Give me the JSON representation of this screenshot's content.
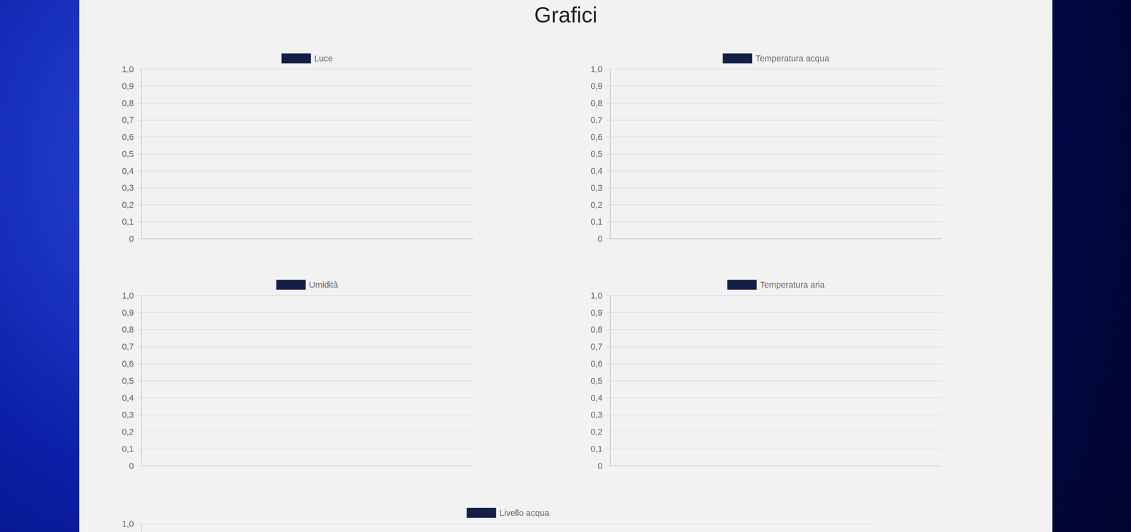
{
  "header": {
    "title": "Grafici"
  },
  "chart_data": [
    {
      "type": "line",
      "categories": [],
      "series": [
        {
          "name": "Luce",
          "color": "#141e46",
          "values": []
        }
      ],
      "ylim": [
        0,
        1
      ],
      "yticks": [
        0,
        {
          "value": 0.1,
          "label": "0,1"
        },
        {
          "value": 0.2,
          "label": "0,2"
        },
        {
          "value": 0.3,
          "label": "0,3"
        },
        {
          "value": 0.4,
          "label": "0,4"
        },
        {
          "value": 0.5,
          "label": "0,5"
        },
        {
          "value": 0.6,
          "label": "0,6"
        },
        {
          "value": 0.7,
          "label": "0,7"
        },
        {
          "value": 0.8,
          "label": "0,8"
        },
        {
          "value": 0.9,
          "label": "0,9"
        },
        {
          "value": 1,
          "label": "1,0"
        }
      ],
      "grid": true,
      "legend": "top",
      "tick_labels": "y"
    },
    {
      "type": "line",
      "categories": [],
      "series": [
        {
          "name": "Temperatura acqua",
          "color": "#141e46",
          "values": []
        }
      ],
      "ylim": [
        0,
        1
      ],
      "yticks": [
        0,
        {
          "value": 0.1,
          "label": "0,1"
        },
        {
          "value": 0.2,
          "label": "0,2"
        },
        {
          "value": 0.3,
          "label": "0,3"
        },
        {
          "value": 0.4,
          "label": "0,4"
        },
        {
          "value": 0.5,
          "label": "0,5"
        },
        {
          "value": 0.6,
          "label": "0,6"
        },
        {
          "value": 0.7,
          "label": "0,7"
        },
        {
          "value": 0.8,
          "label": "0,8"
        },
        {
          "value": 0.9,
          "label": "0,9"
        },
        {
          "value": 1,
          "label": "1,0"
        }
      ],
      "grid": true,
      "legend": "top",
      "tick_labels": "y"
    },
    {
      "type": "line",
      "categories": [],
      "series": [
        {
          "name": "Umidità",
          "color": "#141e46",
          "values": []
        }
      ],
      "ylim": [
        0,
        1
      ],
      "yticks": [
        0,
        {
          "value": 0.1,
          "label": "0,1"
        },
        {
          "value": 0.2,
          "label": "0,2"
        },
        {
          "value": 0.3,
          "label": "0,3"
        },
        {
          "value": 0.4,
          "label": "0,4"
        },
        {
          "value": 0.5,
          "label": "0,5"
        },
        {
          "value": 0.6,
          "label": "0,6"
        },
        {
          "value": 0.7,
          "label": "0,7"
        },
        {
          "value": 0.8,
          "label": "0,8"
        },
        {
          "value": 0.9,
          "label": "0,9"
        },
        {
          "value": 1,
          "label": "1,0"
        }
      ],
      "grid": true,
      "legend": "top",
      "tick_labels": "y"
    },
    {
      "type": "line",
      "categories": [],
      "series": [
        {
          "name": "Temperatura aria",
          "color": "#141e46",
          "values": []
        }
      ],
      "ylim": [
        0,
        1
      ],
      "yticks": [
        0,
        {
          "value": 0.1,
          "label": "0,1"
        },
        {
          "value": 0.2,
          "label": "0,2"
        },
        {
          "value": 0.3,
          "label": "0,3"
        },
        {
          "value": 0.4,
          "label": "0,4"
        },
        {
          "value": 0.5,
          "label": "0,5"
        },
        {
          "value": 0.6,
          "label": "0,6"
        },
        {
          "value": 0.7,
          "label": "0,7"
        },
        {
          "value": 0.8,
          "label": "0,8"
        },
        {
          "value": 0.9,
          "label": "0,9"
        },
        {
          "value": 1,
          "label": "1,0"
        }
      ],
      "grid": true,
      "legend": "top",
      "tick_labels": "y"
    },
    {
      "type": "line",
      "categories": [],
      "series": [
        {
          "name": "Livello acqua",
          "color": "#141e46",
          "values": []
        }
      ],
      "ylim": [
        0,
        1
      ],
      "yticks": [
        {
          "value": 1,
          "label": "1,0"
        }
      ],
      "grid": true,
      "legend": "top",
      "tick_labels": "y"
    }
  ]
}
